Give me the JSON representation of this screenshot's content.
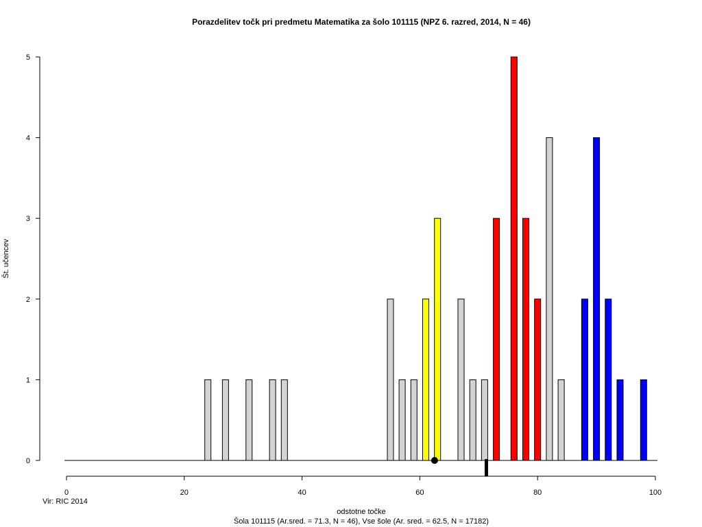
{
  "chart_data": {
    "type": "bar",
    "title": "Porazdelitev točk pri predmetu Matematika za šolo 101115 (NPZ 6. razred, 2014, N = 46)",
    "xlabel": "odstotne točke",
    "ylabel": "Št. učencev",
    "subtitle": "Šola 101115 (Ar.sred. = 71.3, N = 46), Vse šole (Ar. sred. = 62.5, N = 17182)",
    "source_note": "Vir: RIC 2014",
    "xlim": [
      0,
      100
    ],
    "ylim": [
      0,
      5
    ],
    "x_ticks": [
      0,
      20,
      40,
      60,
      80,
      100
    ],
    "y_ticks": [
      0,
      1,
      2,
      3,
      4,
      5
    ],
    "bars": [
      {
        "x": 24,
        "value": 1,
        "color": "#d3d3d3"
      },
      {
        "x": 27,
        "value": 1,
        "color": "#d3d3d3"
      },
      {
        "x": 31,
        "value": 1,
        "color": "#d3d3d3"
      },
      {
        "x": 35,
        "value": 1,
        "color": "#d3d3d3"
      },
      {
        "x": 37,
        "value": 1,
        "color": "#d3d3d3"
      },
      {
        "x": 55,
        "value": 2,
        "color": "#d3d3d3"
      },
      {
        "x": 57,
        "value": 1,
        "color": "#d3d3d3"
      },
      {
        "x": 59,
        "value": 1,
        "color": "#d3d3d3"
      },
      {
        "x": 61,
        "value": 2,
        "color": "#ffff00"
      },
      {
        "x": 63,
        "value": 3,
        "color": "#ffff00"
      },
      {
        "x": 67,
        "value": 2,
        "color": "#d3d3d3"
      },
      {
        "x": 69,
        "value": 1,
        "color": "#d3d3d3"
      },
      {
        "x": 71,
        "value": 1,
        "color": "#d3d3d3"
      },
      {
        "x": 73,
        "value": 3,
        "color": "#ff0000"
      },
      {
        "x": 76,
        "value": 5,
        "color": "#ff0000"
      },
      {
        "x": 78,
        "value": 3,
        "color": "#ff0000"
      },
      {
        "x": 80,
        "value": 2,
        "color": "#ff0000"
      },
      {
        "x": 82,
        "value": 4,
        "color": "#d3d3d3"
      },
      {
        "x": 84,
        "value": 1,
        "color": "#d3d3d3"
      },
      {
        "x": 88,
        "value": 2,
        "color": "#0000ff"
      },
      {
        "x": 90,
        "value": 4,
        "color": "#0000ff"
      },
      {
        "x": 92,
        "value": 2,
        "color": "#0000ff"
      },
      {
        "x": 94,
        "value": 1,
        "color": "#0000ff"
      },
      {
        "x": 98,
        "value": 1,
        "color": "#0000ff"
      }
    ],
    "school_mean": 71.3,
    "all_schools_mean": 62.5
  }
}
